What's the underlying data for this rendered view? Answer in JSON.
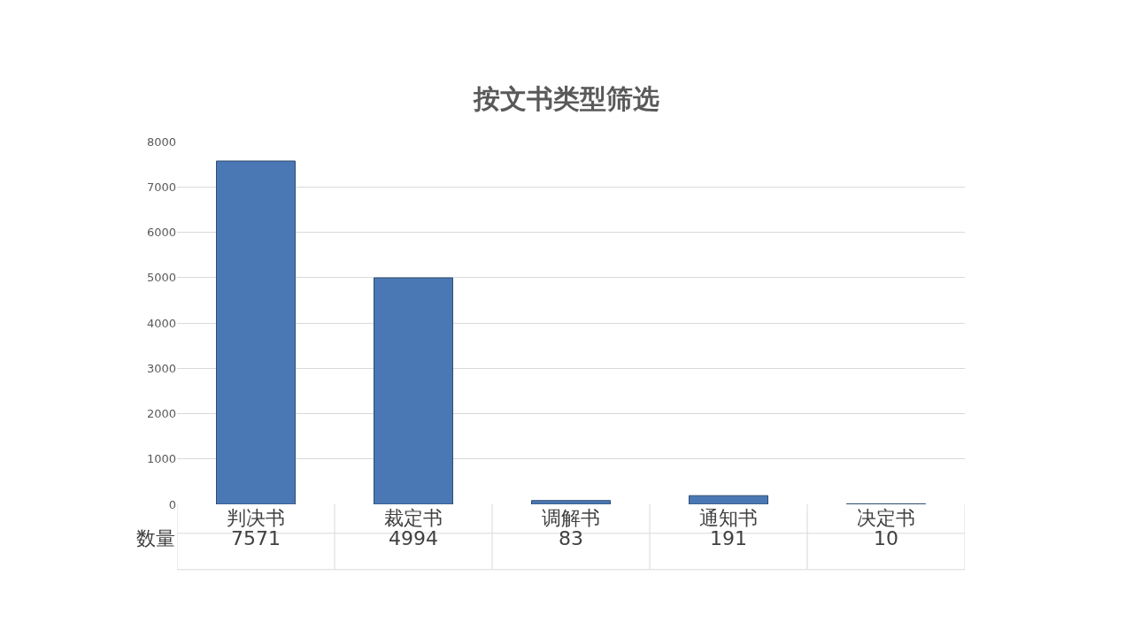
{
  "chart_data": {
    "type": "bar",
    "title": "按文书类型筛选",
    "categories": [
      "判决书",
      "裁定书",
      "调解书",
      "通知书",
      "决定书"
    ],
    "series": [
      {
        "name": "数量",
        "color": "#4a78b4",
        "values": [
          7571,
          4994,
          83,
          191,
          10
        ]
      }
    ],
    "ylim": [
      0,
      8000
    ],
    "yticks": [
      0,
      1000,
      2000,
      3000,
      4000,
      5000,
      6000,
      7000,
      8000
    ],
    "grid": "y",
    "legend": false,
    "data_labels": true
  }
}
